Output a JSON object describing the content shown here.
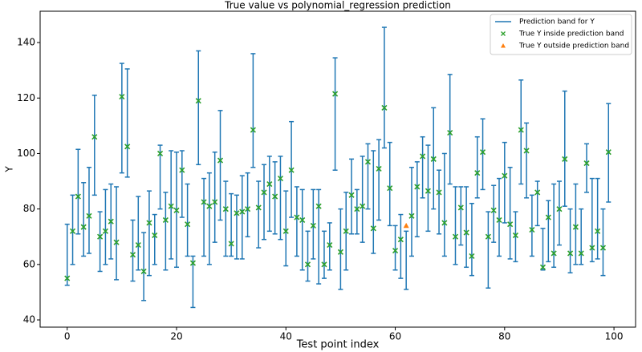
{
  "chart_data": {
    "type": "errorbar",
    "title": "True value vs polynomial_regression prediction",
    "x_label": "Test point index",
    "y_label": "Y",
    "xlim": [
      -4.95,
      103.95
    ],
    "ylim": [
      37.4,
      151.3
    ],
    "xticks": [
      0,
      20,
      40,
      60,
      80,
      100
    ],
    "yticks": [
      40,
      60,
      80,
      100,
      120,
      140
    ],
    "legend": "upper right",
    "series": [
      {
        "name": "Prediction band for Y",
        "color": "#1f77b4",
        "x": [
          0,
          1,
          2,
          3,
          4,
          5,
          6,
          7,
          8,
          9,
          10,
          11,
          12,
          13,
          14,
          15,
          16,
          17,
          18,
          19,
          20,
          21,
          22,
          23,
          24,
          25,
          26,
          27,
          28,
          29,
          30,
          31,
          32,
          33,
          34,
          35,
          36,
          37,
          38,
          39,
          40,
          41,
          42,
          43,
          44,
          45,
          46,
          47,
          48,
          49,
          50,
          51,
          52,
          53,
          54,
          55,
          56,
          57,
          58,
          59,
          60,
          61,
          62,
          63,
          64,
          65,
          66,
          67,
          68,
          69,
          70,
          71,
          72,
          73,
          74,
          75,
          76,
          77,
          78,
          79,
          80,
          81,
          82,
          83,
          84,
          85,
          86,
          87,
          88,
          89,
          90,
          91,
          92,
          93,
          94,
          95,
          96,
          97,
          98,
          99
        ],
        "lower": [
          52.5,
          60,
          71,
          63,
          64,
          85,
          57.5,
          60,
          62,
          54.5,
          93,
          91.5,
          54,
          58,
          47,
          56,
          60,
          80,
          58,
          62,
          59,
          77,
          63,
          44.5,
          96,
          63,
          60,
          68,
          76,
          63,
          63,
          62,
          62,
          70,
          95,
          66,
          69,
          72,
          71,
          69,
          59.5,
          77,
          63,
          58,
          54,
          62,
          53,
          55,
          58,
          94,
          51,
          58,
          71,
          71,
          68,
          80,
          64,
          76,
          102,
          74,
          58,
          55,
          51,
          63,
          70,
          84,
          72,
          80,
          71,
          63,
          89,
          60,
          67,
          59,
          56,
          84,
          87,
          51.5,
          68,
          63,
          75,
          62,
          61,
          89,
          84,
          63,
          74,
          58,
          61,
          59,
          67,
          81,
          57,
          60,
          60,
          86,
          61,
          62,
          56,
          82.5
        ],
        "upper": [
          74.5,
          85,
          101.5,
          89.5,
          95,
          121,
          79,
          87,
          89,
          88,
          132.5,
          130.5,
          76,
          84.5,
          71.5,
          86.5,
          78,
          103,
          86,
          101,
          100.5,
          101,
          89,
          63,
          137,
          91,
          93,
          100.5,
          115.5,
          90,
          85.5,
          85,
          92,
          93,
          136,
          90,
          96,
          99,
          97,
          99,
          86.5,
          111.5,
          88,
          87,
          72,
          87,
          87,
          72,
          75,
          134.5,
          80,
          86,
          98,
          87,
          99,
          103.5,
          101,
          105,
          145.5,
          104,
          74,
          78,
          72,
          95,
          97,
          106,
          103,
          116.5,
          94,
          100,
          128.5,
          88,
          88,
          88,
          82,
          106,
          112.5,
          79,
          88.5,
          91,
          104,
          95,
          79,
          126.5,
          111,
          85,
          90,
          73,
          83,
          89,
          90,
          122.5,
          80,
          89,
          80,
          103.5,
          91,
          91,
          80,
          118
        ]
      },
      {
        "name": "True Y inside prediction band",
        "color": "#2ca02c",
        "x": [
          0,
          1,
          2,
          3,
          4,
          5,
          6,
          7,
          8,
          9,
          10,
          11,
          12,
          13,
          14,
          15,
          16,
          17,
          18,
          19,
          20,
          21,
          22,
          23,
          24,
          25,
          26,
          27,
          28,
          29,
          30,
          31,
          32,
          33,
          34,
          35,
          36,
          37,
          38,
          39,
          40,
          41,
          42,
          43,
          44,
          45,
          46,
          47,
          48,
          49,
          50,
          51,
          52,
          53,
          54,
          55,
          56,
          57,
          58,
          59,
          60,
          61,
          63,
          64,
          65,
          66,
          67,
          68,
          69,
          70,
          71,
          72,
          73,
          74,
          75,
          76,
          77,
          78,
          79,
          80,
          81,
          82,
          83,
          84,
          85,
          86,
          87,
          88,
          89,
          90,
          91,
          92,
          93,
          94,
          95,
          96,
          97,
          98,
          99
        ],
        "values": [
          55,
          72,
          84.5,
          73.5,
          77.5,
          106,
          70,
          72,
          75.5,
          68,
          120.5,
          102.5,
          63.5,
          67,
          57.5,
          75,
          70.5,
          100,
          76,
          81,
          79.5,
          94,
          74.5,
          60.5,
          119,
          82.5,
          81,
          82.5,
          97.5,
          80,
          67.5,
          78.5,
          79,
          80,
          108.5,
          80.5,
          86,
          89,
          84.5,
          91,
          72,
          94,
          77,
          76,
          60,
          74,
          81,
          60,
          67,
          121.5,
          64.5,
          72,
          85,
          80,
          81,
          97,
          73,
          94.5,
          116.5,
          87.5,
          65,
          69,
          77.5,
          88,
          99,
          86.5,
          98,
          86,
          75,
          107.5,
          70,
          80.5,
          71.5,
          63,
          93,
          100.5,
          70,
          79.5,
          76,
          92,
          74.5,
          70.5,
          108.5,
          101,
          72.5,
          86,
          59,
          77,
          64,
          80,
          98,
          64,
          73.5,
          64,
          96.5,
          66,
          72,
          66,
          100.5
        ]
      },
      {
        "name": "True Y outside prediction band",
        "color": "#ff7f0e",
        "x": [
          62
        ],
        "values": [
          74
        ]
      }
    ]
  }
}
